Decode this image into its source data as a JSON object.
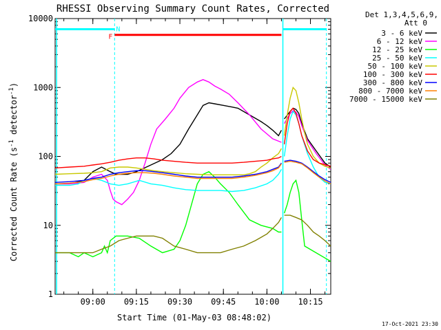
{
  "chart_data": {
    "type": "line",
    "title": "RHESSI Observing Summary Count Rates, Corrected",
    "xlabel": "Start Time (01-May-03 08:48:02)",
    "ylabel_main": "Corrected Count Rate (s",
    "ylabel_sup": "-1",
    "ylabel_tail": " detector",
    "ylabel_sup2": "-1",
    "ylabel_end": ")",
    "y_scale": "log",
    "ylim": [
      1,
      10000
    ],
    "xlim_minutes": [
      -13,
      82
    ],
    "y_ticks": [
      {
        "value": 1,
        "label": "1"
      },
      {
        "value": 10,
        "label": "10"
      },
      {
        "value": 100,
        "label": "100"
      },
      {
        "value": 1000,
        "label": "1000"
      },
      {
        "value": 10000,
        "label": "10000"
      }
    ],
    "x_ticks": [
      {
        "minute": 0,
        "label": "09:00"
      },
      {
        "minute": 15,
        "label": "09:15"
      },
      {
        "minute": 30,
        "label": "09:30"
      },
      {
        "minute": 45,
        "label": "09:45"
      },
      {
        "minute": 60,
        "label": "10:00"
      },
      {
        "minute": 75,
        "label": "10:15"
      }
    ],
    "legend_header": [
      "Det 1,3,4,5,6,9,",
      "Att 0"
    ],
    "legend_placement": "right",
    "series": [
      {
        "name": "3 - 6 keV",
        "color": "#000000",
        "x": [
          -13,
          -8,
          -3,
          0,
          3,
          6,
          8,
          12,
          15,
          20,
          24,
          27,
          30,
          33,
          36,
          38,
          40,
          42,
          45,
          48,
          50,
          54,
          58,
          60,
          62,
          64,
          65
        ],
        "y": [
          40,
          40,
          45,
          60,
          70,
          60,
          55,
          55,
          60,
          75,
          90,
          110,
          150,
          250,
          400,
          550,
          600,
          580,
          550,
          520,
          500,
          400,
          320,
          280,
          240,
          200,
          240
        ]
      },
      {
        "name": "6 - 12 keV",
        "color": "#ff00ff",
        "x": [
          -13,
          -8,
          -3,
          0,
          3,
          5,
          6,
          7,
          8,
          10,
          12,
          14,
          16,
          18,
          20,
          22,
          25,
          28,
          30,
          33,
          36,
          38,
          40,
          42,
          44,
          47,
          50,
          54,
          58,
          62,
          65
        ],
        "y": [
          40,
          40,
          42,
          50,
          55,
          45,
          32,
          24,
          22,
          20,
          24,
          30,
          45,
          80,
          150,
          250,
          350,
          500,
          700,
          1000,
          1200,
          1300,
          1200,
          1050,
          950,
          800,
          600,
          400,
          250,
          180,
          160
        ]
      },
      {
        "name": "12 - 25 keV",
        "color": "#00ff00",
        "x": [
          -13,
          -8,
          -5,
          -3,
          0,
          3,
          4,
          5,
          6,
          8,
          12,
          16,
          20,
          24,
          28,
          30,
          32,
          34,
          36,
          38,
          40,
          42,
          44,
          47,
          50,
          54,
          58,
          62,
          64,
          65
        ],
        "y": [
          4,
          4,
          3.5,
          4,
          3.5,
          4,
          5,
          4,
          6,
          7,
          7,
          6.5,
          5,
          4,
          4.5,
          6,
          10,
          20,
          40,
          55,
          60,
          50,
          40,
          30,
          20,
          12,
          10,
          9,
          8,
          8
        ]
      },
      {
        "name": "25 - 50 keV",
        "color": "#00ffff",
        "x": [
          -13,
          -8,
          -5,
          -3,
          0,
          3,
          6,
          9,
          12,
          16,
          20,
          24,
          28,
          32,
          36,
          40,
          44,
          48,
          52,
          56,
          60,
          62,
          64,
          65
        ],
        "y": [
          38,
          38,
          40,
          45,
          48,
          45,
          40,
          38,
          40,
          45,
          40,
          38,
          35,
          33,
          32,
          32,
          32,
          31,
          32,
          35,
          40,
          45,
          55,
          65
        ]
      },
      {
        "name": "50 - 100 keV",
        "color": "#c8c800",
        "x": [
          -13,
          -8,
          -3,
          0,
          3,
          6,
          9,
          12,
          15,
          18,
          21,
          24,
          28,
          32,
          36,
          40,
          44,
          48,
          52,
          54,
          56,
          58,
          60,
          62,
          64,
          65
        ],
        "y": [
          55,
          56,
          57,
          58,
          60,
          68,
          70,
          70,
          68,
          65,
          62,
          60,
          58,
          56,
          55,
          54,
          54,
          54,
          54,
          56,
          60,
          70,
          80,
          95,
          110,
          130
        ]
      },
      {
        "name": "100 - 300 keV",
        "color": "#ff0000",
        "x": [
          -13,
          -8,
          -3,
          0,
          3,
          6,
          9,
          12,
          15,
          18,
          21,
          24,
          28,
          32,
          36,
          40,
          44,
          48,
          52,
          56,
          60,
          62,
          64,
          65
        ],
        "y": [
          68,
          70,
          72,
          75,
          78,
          82,
          88,
          92,
          95,
          95,
          92,
          88,
          85,
          82,
          80,
          80,
          80,
          80,
          82,
          85,
          88,
          92,
          95,
          100
        ]
      },
      {
        "name": "300 - 800 keV",
        "color": "#0000ff",
        "x": [
          -13,
          -8,
          -3,
          0,
          3,
          6,
          9,
          12,
          15,
          18,
          21,
          24,
          28,
          32,
          36,
          40,
          44,
          48,
          52,
          56,
          60,
          62,
          64,
          65
        ],
        "y": [
          42,
          43,
          45,
          48,
          50,
          55,
          58,
          60,
          62,
          62,
          60,
          58,
          55,
          52,
          50,
          50,
          50,
          50,
          52,
          55,
          60,
          65,
          70,
          80
        ]
      },
      {
        "name": "800 - 7000 keV",
        "color": "#ff8000",
        "x": [
          -13,
          -8,
          -3,
          0,
          3,
          6,
          9,
          12,
          15,
          18,
          21,
          24,
          28,
          32,
          36,
          40,
          44,
          48,
          52,
          56,
          60,
          62,
          64,
          65
        ],
        "y": [
          40,
          41,
          43,
          46,
          48,
          52,
          55,
          57,
          58,
          58,
          57,
          55,
          52,
          50,
          48,
          48,
          48,
          48,
          50,
          53,
          58,
          62,
          68,
          78
        ]
      },
      {
        "name": "7000 - 15000 keV",
        "color": "#808000",
        "x": [
          -13,
          -8,
          -3,
          0,
          3,
          6,
          9,
          12,
          15,
          18,
          21,
          24,
          28,
          32,
          36,
          40,
          44,
          48,
          52,
          56,
          60,
          62,
          64,
          65
        ],
        "y": [
          4,
          4,
          4,
          4,
          4.5,
          5,
          6,
          6.5,
          7,
          7,
          7,
          6.5,
          5,
          4.5,
          4,
          4,
          4,
          4.5,
          5,
          6,
          7.5,
          9,
          11,
          13
        ]
      }
    ],
    "series_post_gap": [
      {
        "color": "#000000",
        "x": [
          66,
          68,
          69,
          70,
          71,
          72,
          74,
          77,
          80,
          82
        ],
        "y": [
          350,
          450,
          500,
          480,
          420,
          300,
          180,
          120,
          80,
          70
        ]
      },
      {
        "color": "#ff00ff",
        "x": [
          66,
          68,
          69,
          70,
          71,
          72,
          74,
          77,
          80,
          82
        ],
        "y": [
          300,
          420,
          460,
          440,
          380,
          280,
          170,
          110,
          75,
          65
        ]
      },
      {
        "color": "#00ff00",
        "x": [
          66,
          67,
          68,
          69,
          70,
          71,
          72,
          73,
          82
        ],
        "y": [
          15,
          20,
          30,
          40,
          45,
          30,
          12,
          5,
          3
        ]
      },
      {
        "color": "#00ffff",
        "x": [
          66,
          67,
          68,
          69,
          70,
          71,
          72,
          74,
          76,
          78,
          80,
          82
        ],
        "y": [
          100,
          200,
          350,
          450,
          400,
          300,
          200,
          110,
          70,
          50,
          42,
          40
        ]
      },
      {
        "color": "#c8c800",
        "x": [
          66,
          67,
          68,
          69,
          70,
          71,
          72,
          73,
          74,
          76,
          78,
          80,
          82
        ],
        "y": [
          200,
          400,
          700,
          1000,
          900,
          600,
          350,
          220,
          150,
          100,
          80,
          72,
          68
        ]
      },
      {
        "color": "#ff0000",
        "x": [
          66,
          67,
          68,
          69,
          70,
          71,
          72,
          74,
          76,
          78,
          80,
          82
        ],
        "y": [
          150,
          300,
          450,
          500,
          420,
          300,
          200,
          120,
          90,
          80,
          76,
          72
        ]
      },
      {
        "color": "#0000ff",
        "x": [
          66,
          68,
          70,
          72,
          74,
          76,
          78,
          80,
          82
        ],
        "y": [
          85,
          88,
          85,
          80,
          70,
          60,
          52,
          46,
          42
        ]
      },
      {
        "color": "#ff8000",
        "x": [
          66,
          68,
          70,
          72,
          74,
          76,
          78,
          80,
          82
        ],
        "y": [
          82,
          85,
          82,
          78,
          68,
          58,
          50,
          44,
          40
        ]
      },
      {
        "color": "#808000",
        "x": [
          66,
          68,
          70,
          72,
          74,
          76,
          78,
          80,
          82
        ],
        "y": [
          14,
          14,
          13,
          12,
          10,
          8,
          7,
          6,
          5
        ]
      }
    ],
    "annotations": {
      "night_start_minute": -12.5,
      "night_end_minute": 7.5,
      "night2_start_minute": 65.5,
      "night2_end_minute": 80.5,
      "n_label": "N",
      "f_label": "F",
      "flare_start_minute": 7.5,
      "flare_end_minute": 65,
      "flare_level": 5800,
      "night_level": 7000
    },
    "timestamp": "17-Oct-2021 23:30"
  }
}
